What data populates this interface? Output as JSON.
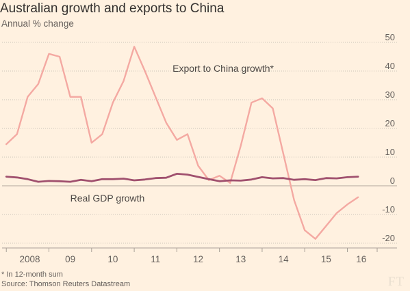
{
  "title": "Australian growth and exports to China",
  "subtitle": "Annual % change",
  "footnote": "* In 12-month sum",
  "source": "Source: Thomson Reuters Datastream",
  "logo": "FT",
  "colors": {
    "background": "#fff1e0",
    "export_line": "#f4a9a2",
    "gdp_line": "#a0506e",
    "grid": "#c9c0b5",
    "text": "#66605c"
  },
  "chart_data": {
    "type": "line",
    "title": "Australian growth and exports to China",
    "ylabel": "Annual % change",
    "ylim": [
      -20,
      50
    ],
    "yticks": [
      -20,
      -10,
      0,
      10,
      20,
      30,
      40,
      50
    ],
    "ytick_labels": [
      "-20",
      "-10",
      "0",
      "10",
      "20",
      "30",
      "40",
      "50"
    ],
    "xlim": [
      2007.9,
      2016.65
    ],
    "xtick_labels": [
      "2008",
      "09",
      "10",
      "11",
      "12",
      "13",
      "14",
      "15",
      "16"
    ],
    "xtick_boundaries": [
      2008,
      2009,
      2010,
      2011,
      2012,
      2013,
      2014,
      2015,
      2016
    ],
    "grid": true,
    "series": [
      {
        "name": "Export to China growth*",
        "color": "#f4a9a2",
        "x": [
          2008.0,
          2008.25,
          2008.5,
          2008.75,
          2009.0,
          2009.25,
          2009.5,
          2009.75,
          2010.0,
          2010.25,
          2010.5,
          2010.75,
          2011.0,
          2011.25,
          2011.5,
          2011.75,
          2012.0,
          2012.25,
          2012.5,
          2012.75,
          2013.0,
          2013.25,
          2013.5,
          2013.75,
          2014.0,
          2014.25,
          2014.5,
          2014.75,
          2015.0,
          2015.25,
          2015.5,
          2015.75,
          2016.0,
          2016.25
        ],
        "y": [
          14.5,
          18,
          31,
          35.5,
          46,
          45,
          31,
          31,
          15,
          18,
          29,
          36.5,
          48.5,
          40,
          31,
          22,
          16,
          18,
          7,
          2,
          3.5,
          1,
          14,
          29,
          30.5,
          27,
          11,
          -5,
          -15.5,
          -18.5,
          -14,
          -9.5,
          -6.5,
          -4
        ]
      },
      {
        "name": "Real GDP growth",
        "color": "#a0506e",
        "x": [
          2008.0,
          2008.25,
          2008.5,
          2008.75,
          2009.0,
          2009.25,
          2009.5,
          2009.75,
          2010.0,
          2010.25,
          2010.5,
          2010.75,
          2011.0,
          2011.25,
          2011.5,
          2011.75,
          2012.0,
          2012.25,
          2012.5,
          2012.75,
          2013.0,
          2013.25,
          2013.5,
          2013.75,
          2014.0,
          2014.25,
          2014.5,
          2014.75,
          2015.0,
          2015.25,
          2015.5,
          2015.75,
          2016.0,
          2016.25
        ],
        "y": [
          3.2,
          2.9,
          2.3,
          1.4,
          1.7,
          1.6,
          1.4,
          2.1,
          1.6,
          2.3,
          2.3,
          2.5,
          1.9,
          2.2,
          2.7,
          2.8,
          4.2,
          3.9,
          3.1,
          2.3,
          1.6,
          1.9,
          1.8,
          2.2,
          3.0,
          2.6,
          2.7,
          2.1,
          2.3,
          2.0,
          2.7,
          2.6,
          3.0,
          3.2
        ]
      }
    ],
    "annotations": [
      {
        "text": "Export to China growth*",
        "x": 2011.9,
        "y": 39.8
      },
      {
        "text": "Real GDP growth",
        "x": 2009.5,
        "y": -5.5
      }
    ]
  }
}
